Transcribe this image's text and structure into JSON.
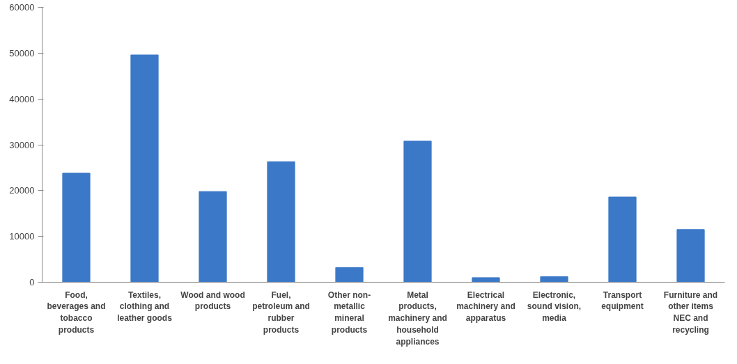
{
  "chart_data": {
    "type": "bar",
    "categories": [
      "Food, beverages and tobacco products",
      "Textiles, clothing and leather goods",
      "Wood and wood products",
      "Fuel, petroleum and rubber products",
      "Other non-metallic mineral products",
      "Metal products, machinery and household appliances",
      "Electrical machinery and apparatus",
      "Electronic, sound vision, media",
      "Transport equipment",
      "Furniture and other items NEC and recycling"
    ],
    "values": [
      23800,
      49600,
      19800,
      26300,
      3200,
      30800,
      1000,
      1200,
      18600,
      11500
    ],
    "color": "#3b78c8",
    "ylim": [
      0,
      60000
    ],
    "yticks": [
      0,
      10000,
      20000,
      30000,
      40000,
      50000,
      60000
    ],
    "grid": false
  }
}
